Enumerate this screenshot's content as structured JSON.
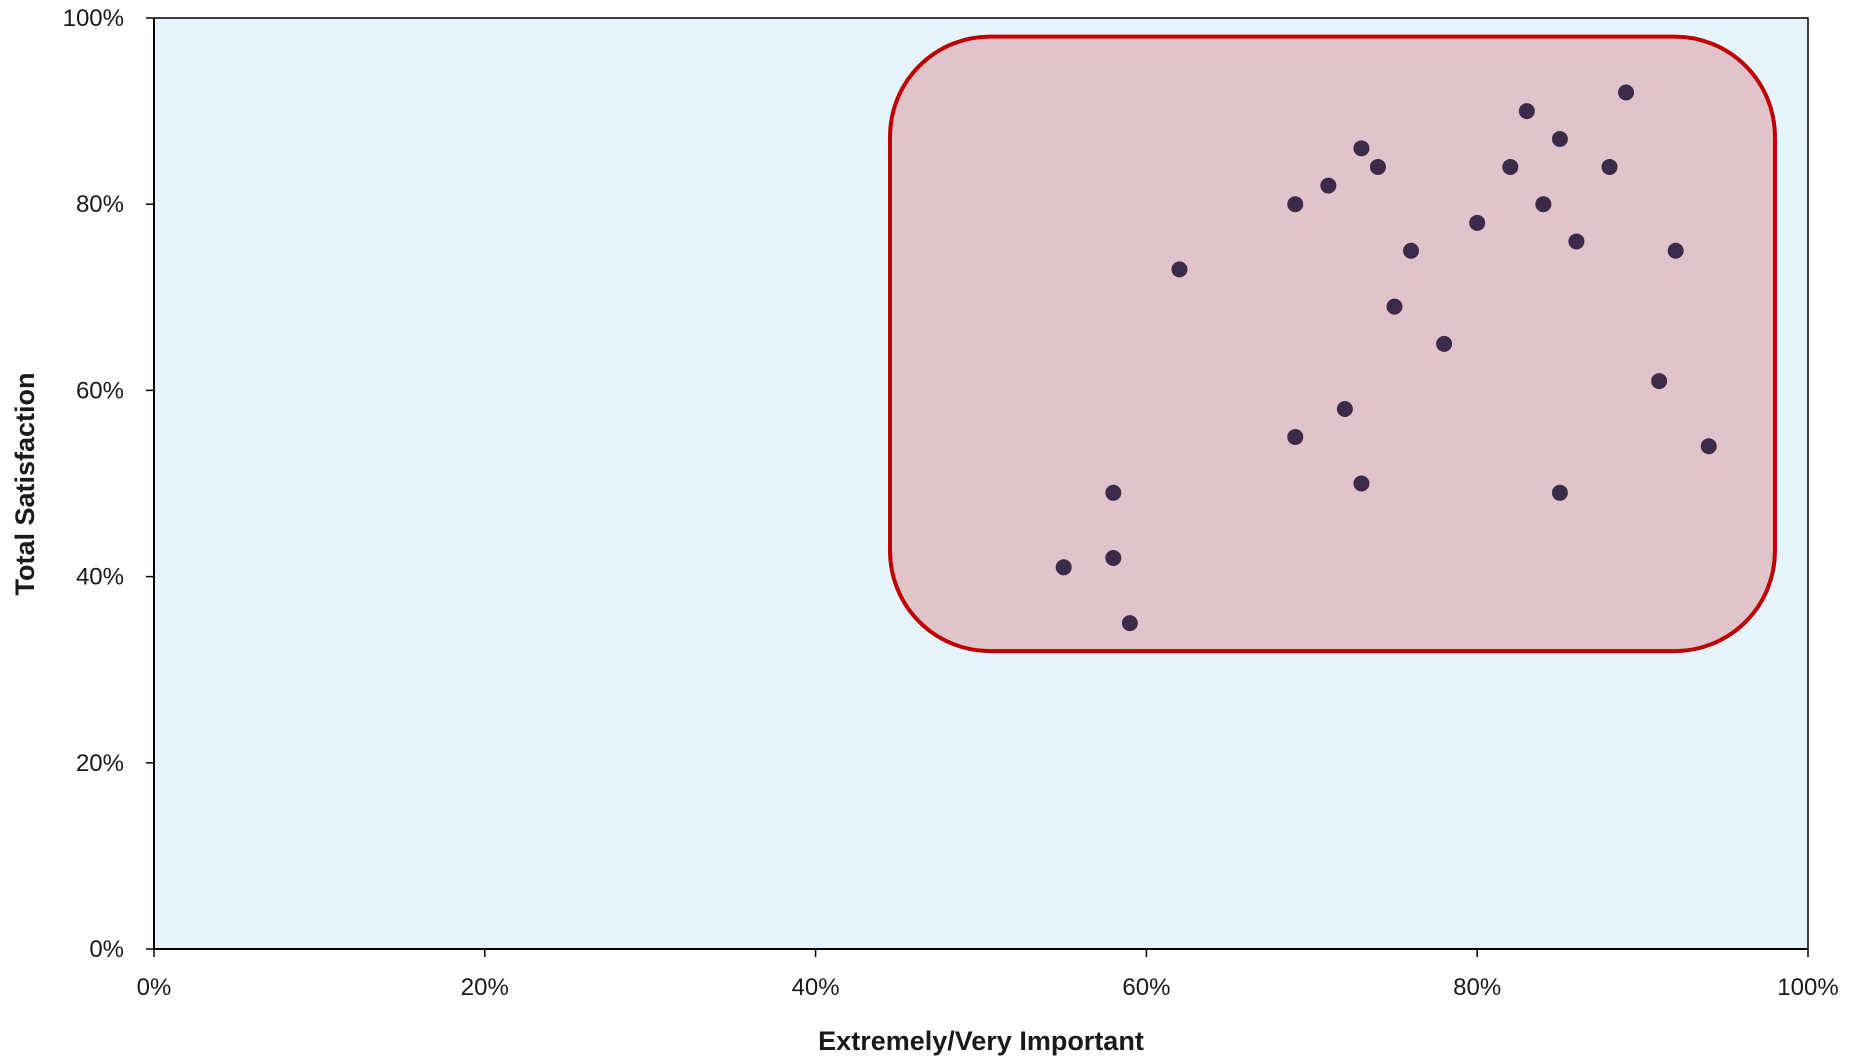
{
  "chart_data": {
    "type": "scatter",
    "title": "",
    "xlabel": "Extremely/Very Important",
    "ylabel": "Total Satisfaction",
    "xlim": [
      0,
      100
    ],
    "ylim": [
      0,
      100
    ],
    "x_ticks": [
      0,
      20,
      40,
      60,
      80,
      100
    ],
    "y_ticks": [
      0,
      20,
      40,
      60,
      80,
      100
    ],
    "x_tick_labels": [
      "0%",
      "20%",
      "40%",
      "60%",
      "80%",
      "100%"
    ],
    "y_tick_labels": [
      "0%",
      "20%",
      "40%",
      "60%",
      "80%",
      "100%"
    ],
    "grid": false,
    "legend": "none",
    "series": [
      {
        "points": [
          {
            "x": 55,
            "y": 41
          },
          {
            "x": 58,
            "y": 42
          },
          {
            "x": 58,
            "y": 49
          },
          {
            "x": 59,
            "y": 35
          },
          {
            "x": 62,
            "y": 73
          },
          {
            "x": 69,
            "y": 80
          },
          {
            "x": 69,
            "y": 55
          },
          {
            "x": 71,
            "y": 82
          },
          {
            "x": 72,
            "y": 58
          },
          {
            "x": 73,
            "y": 86
          },
          {
            "x": 73,
            "y": 50
          },
          {
            "x": 74,
            "y": 84
          },
          {
            "x": 75,
            "y": 69
          },
          {
            "x": 76,
            "y": 75
          },
          {
            "x": 78,
            "y": 65
          },
          {
            "x": 80,
            "y": 78
          },
          {
            "x": 82,
            "y": 84
          },
          {
            "x": 83,
            "y": 90
          },
          {
            "x": 84,
            "y": 80
          },
          {
            "x": 85,
            "y": 87
          },
          {
            "x": 85,
            "y": 49
          },
          {
            "x": 86,
            "y": 76
          },
          {
            "x": 88,
            "y": 84
          },
          {
            "x": 89,
            "y": 92
          },
          {
            "x": 91,
            "y": 61
          },
          {
            "x": 92,
            "y": 75
          },
          {
            "x": 94,
            "y": 54
          }
        ]
      }
    ],
    "highlight_region": {
      "x_range": [
        44.5,
        98
      ],
      "y_range": [
        32,
        98
      ]
    },
    "colors": {
      "plot_background": "#e6f3fb",
      "point": "#3b2a4a",
      "highlight_fill": "#e0c3cb",
      "highlight_stroke": "#c00000",
      "axis": "#000000"
    }
  }
}
